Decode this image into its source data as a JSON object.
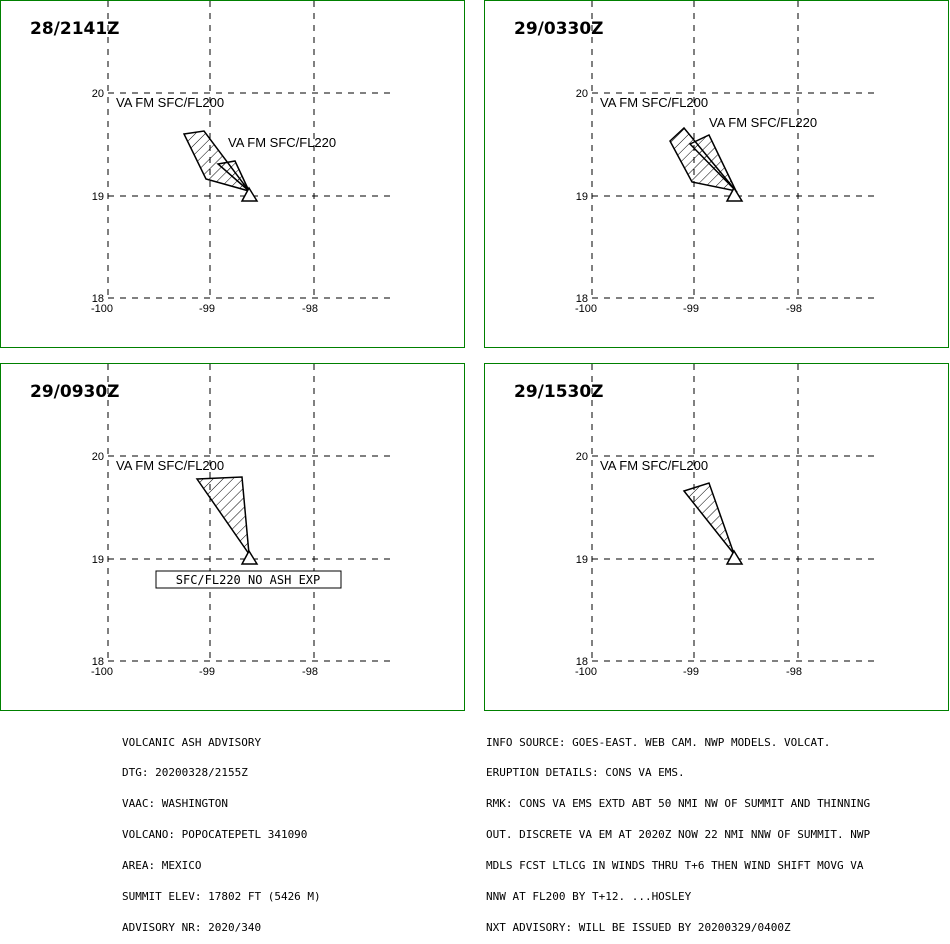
{
  "panels": [
    {
      "time": "28/2141Z",
      "labels": [
        "VA FM SFC/FL200",
        "VA FM SFC/FL220"
      ],
      "boxed_note": ""
    },
    {
      "time": "29/0330Z",
      "labels": [
        "VA FM SFC/FL200",
        "VA FM SFC/FL220"
      ],
      "boxed_note": ""
    },
    {
      "time": "29/0930Z",
      "labels": [
        "VA FM SFC/FL200"
      ],
      "boxed_note": "SFC/FL220 NO ASH EXP"
    },
    {
      "time": "29/1530Z",
      "labels": [
        "VA FM SFC/FL200"
      ],
      "boxed_note": ""
    }
  ],
  "map": {
    "lat_ticks": [
      "20",
      "19",
      "18"
    ],
    "lon_ticks": [
      "-100",
      "-99",
      "-98"
    ],
    "volcano_lat": 19.02,
    "volcano_lon": -98.62
  },
  "advisory_left": [
    "VOLCANIC ASH ADVISORY",
    "DTG: 20200328/2155Z",
    "VAAC: WASHINGTON",
    "VOLCANO: POPOCATEPETL 341090",
    "AREA: MEXICO",
    "SUMMIT ELEV: 17802 FT (5426 M)",
    "ADVISORY NR: 2020/340"
  ],
  "advisory_right": [
    "INFO SOURCE: GOES-EAST. WEB CAM. NWP MODELS. VOLCAT.",
    "ERUPTION DETAILS: CONS VA EMS.",
    "RMK: CONS VA EMS EXTD ABT 50 NMI NW OF SUMMIT AND THINNING",
    "OUT. DISCRETE VA EM AT 2020Z NOW 22 NMI NNW OF SUMMIT. NWP",
    "MDLS FCST LTLCG IN WINDS THRU T+6 THEN WIND SHIFT MOVG VA",
    "NNW AT FL200 BY T+12. ...HOSLEY",
    "NXT ADVISORY: WILL BE ISSUED BY 20200329/0400Z"
  ]
}
